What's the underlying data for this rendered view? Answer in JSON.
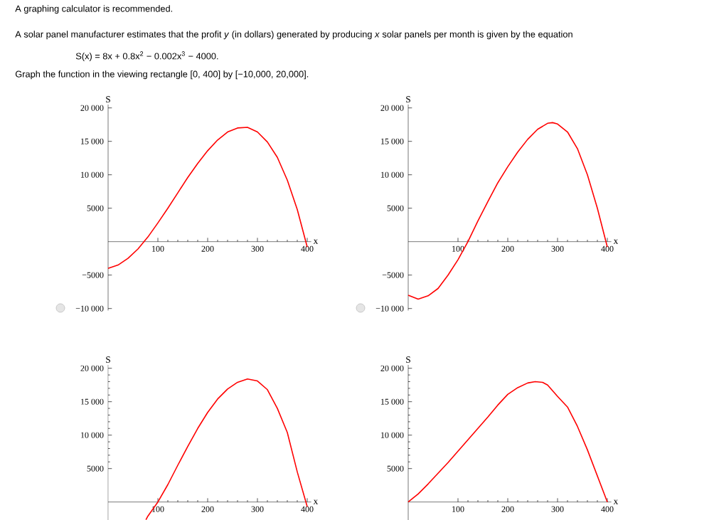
{
  "chart_data": [
    {
      "type": "line",
      "title": "A graphing calculator is recommended.",
      "annotations": [
        "A solar panel manufacturer estimates that the profit *y* (in dollars) generated by producing *x* solar panels per month is given by the equation",
        "S(x) = 8x + 0.8x$^{2}$ − 0.002x$^{3}$ − 4000.",
        "Graph the function in the viewing rectangle  [0, 400]  by  [−10,000, 20,000]."
      ],
      "xlabel": "x",
      "ylabel": "S",
      "color": "#ff0000",
      "x": [
        0,
        20,
        40,
        60,
        80,
        100,
        120,
        140,
        160,
        180,
        200,
        220,
        240,
        260,
        280,
        300,
        320,
        340,
        360,
        380,
        400
      ],
      "values": [
        -4000,
        -3500,
        -2500,
        -1100,
        700,
        2800,
        5000,
        7300,
        9600,
        11700,
        13600,
        15200,
        16400,
        17000,
        17100,
        16400,
        14900,
        12600,
        9200,
        4800,
        -800
      ],
      "xlim": [
        0,
        408
      ],
      "ylim": [
        -10300,
        20500
      ],
      "xticks": [
        100,
        200,
        300,
        400
      ],
      "yticks": [
        {
          "value": 20000,
          "label": "20 000"
        },
        {
          "value": 15000,
          "label": "15 000"
        },
        {
          "value": 10000,
          "label": "10 000"
        },
        5000,
        {
          "value": -5000,
          "label": "−5000"
        },
        {
          "value": -10000,
          "label": "−10 000"
        }
      ]
    },
    {
      "type": "line",
      "xlabel": "x",
      "ylabel": "S",
      "color": "#ff0000",
      "x": [
        0,
        20,
        40,
        60,
        80,
        100,
        120,
        140,
        160,
        180,
        200,
        220,
        240,
        260,
        280,
        290,
        300,
        320,
        340,
        360,
        380,
        400
      ],
      "values": [
        -8000,
        -8600,
        -8100,
        -7000,
        -5000,
        -2700,
        0,
        3100,
        6000,
        8800,
        11200,
        13400,
        15300,
        16800,
        17700,
        17800,
        17600,
        16400,
        13900,
        10000,
        5000,
        -800
      ],
      "xlim": [
        0,
        408
      ],
      "ylim": [
        -10300,
        20500
      ],
      "xticks": [
        100,
        200,
        300,
        400
      ],
      "yticks": [
        {
          "value": 20000,
          "label": "20 000"
        },
        {
          "value": 15000,
          "label": "15 000"
        },
        {
          "value": 10000,
          "label": "10 000"
        },
        5000,
        {
          "value": -5000,
          "label": "−5000"
        },
        {
          "value": -10000,
          "label": "−10 000"
        }
      ]
    },
    {
      "type": "line",
      "xlabel": "x",
      "ylabel": "S",
      "color": "#ff0000",
      "x": [
        76,
        80,
        100,
        120,
        140,
        160,
        180,
        200,
        220,
        240,
        260,
        280,
        300,
        320,
        340,
        360,
        380,
        400
      ],
      "values": [
        -2650,
        -2100,
        0,
        2600,
        5500,
        8300,
        11000,
        13400,
        15400,
        16900,
        17900,
        18400,
        18100,
        16800,
        14000,
        10400,
        4500,
        -700
      ],
      "xlim": [
        0,
        408
      ],
      "ylim": [
        -2700,
        20500
      ],
      "xticks": [
        100,
        200,
        300,
        400
      ],
      "yticks": [
        {
          "value": 20000,
          "label": "20 000"
        },
        {
          "value": 15000,
          "label": "15 000"
        },
        {
          "value": 10000,
          "label": "10 000"
        },
        5000
      ]
    },
    {
      "type": "line",
      "xlabel": "x",
      "ylabel": "S",
      "color": "#ff0000",
      "x": [
        0,
        20,
        40,
        60,
        80,
        100,
        120,
        140,
        160,
        180,
        200,
        220,
        240,
        255,
        270,
        280,
        300,
        320,
        340,
        360,
        380,
        400
      ],
      "values": [
        0,
        1200,
        2700,
        4300,
        5900,
        7600,
        9300,
        11000,
        12700,
        14500,
        16100,
        17100,
        17800,
        18000,
        17900,
        17500,
        15800,
        14200,
        11300,
        7800,
        3900,
        0
      ],
      "xlim": [
        0,
        408
      ],
      "ylim": [
        -2700,
        20500
      ],
      "xticks": [
        100,
        200,
        300,
        400
      ],
      "yticks": [
        {
          "value": 20000,
          "label": "20 000"
        },
        {
          "value": 15000,
          "label": "15 000"
        },
        {
          "value": 10000,
          "label": "10 000"
        },
        5000
      ]
    }
  ]
}
